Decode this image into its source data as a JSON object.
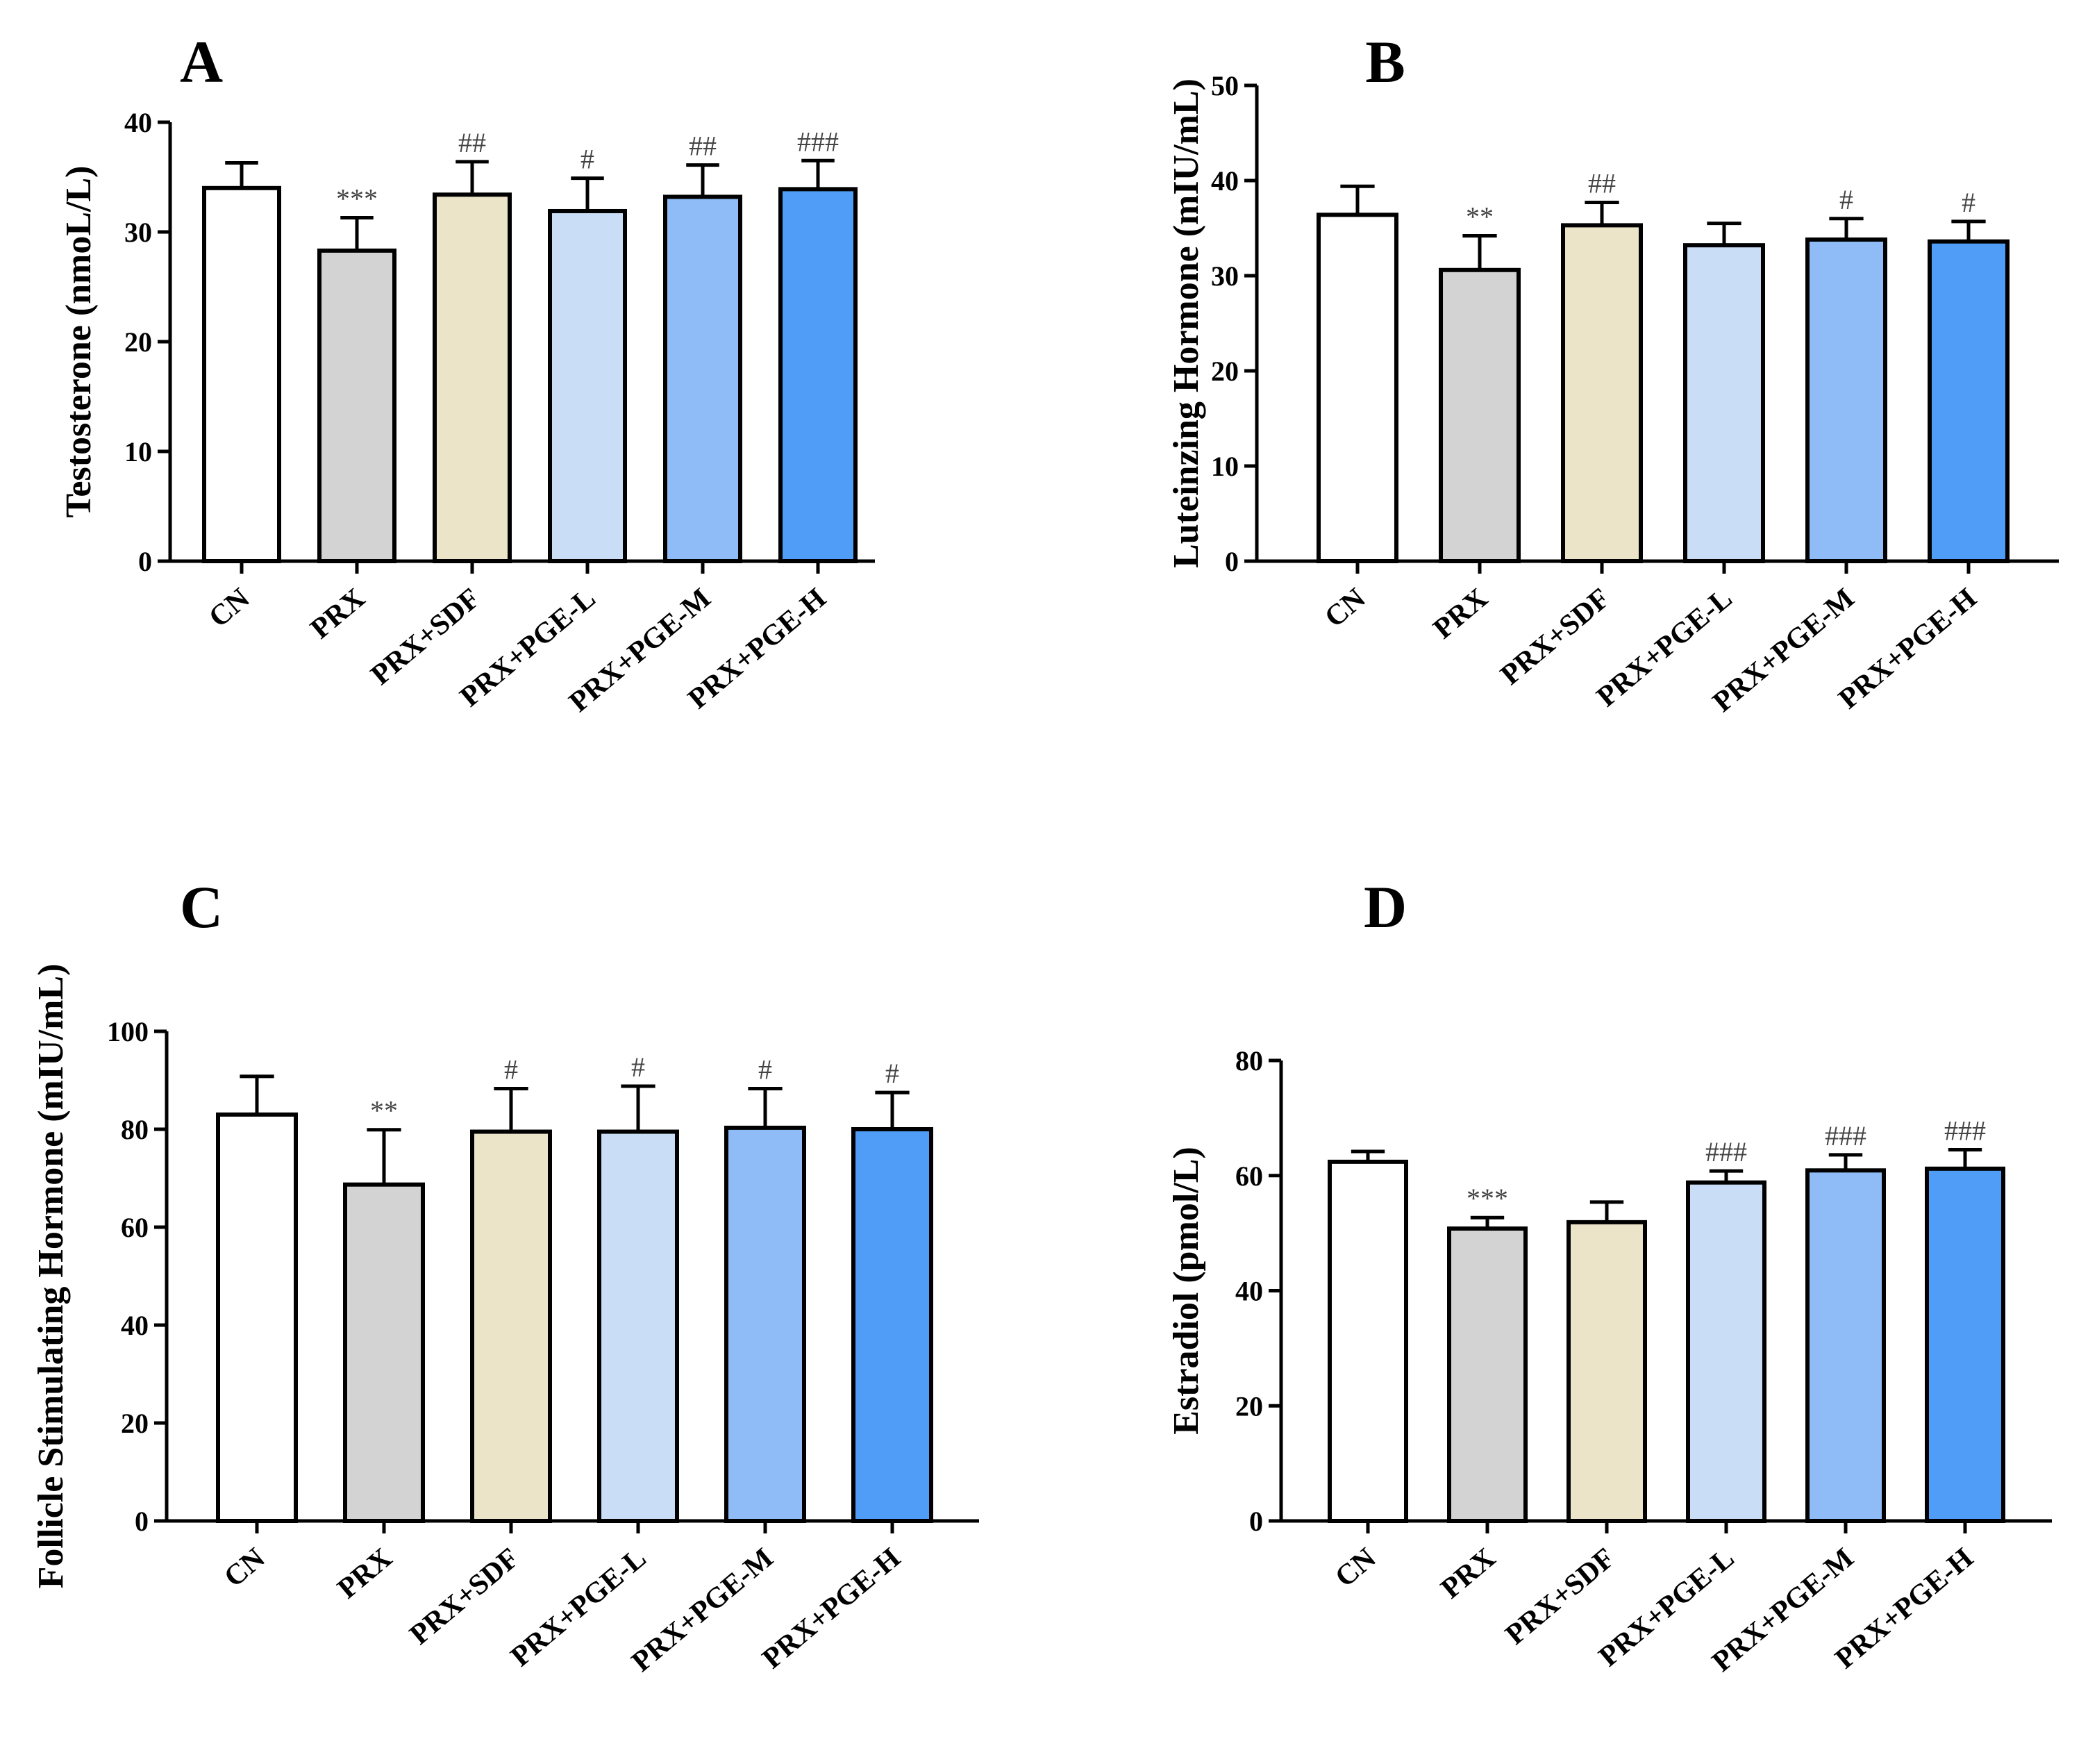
{
  "colors": {
    "CN": "#ffffff",
    "PRX": "#d3d3d3",
    "PRX+SDF": "#ebe4c8",
    "PRX+PGE-L": "#c9ddf7",
    "PRX+PGE-M": "#8fbcf7",
    "PRX+PGE-H": "#4f9df7"
  },
  "chart_data": [
    {
      "panel": "A",
      "type": "bar",
      "ylabel": "Testosterone (nmoL/L)",
      "categories": [
        "CN",
        "PRX",
        "PRX+SDF",
        "PRX+PGE-L",
        "PRX+PGE-M",
        "PRX+PGE-H"
      ],
      "values": [
        34.0,
        28.3,
        33.4,
        31.9,
        33.2,
        33.9
      ],
      "errors": [
        2.3,
        3.0,
        3.0,
        3.0,
        2.9,
        2.6
      ],
      "significance": [
        "",
        "***",
        "##",
        "#",
        "##",
        "###"
      ],
      "ylim": [
        0,
        40
      ],
      "yticks": [
        0,
        10,
        20,
        30,
        40
      ]
    },
    {
      "panel": "B",
      "type": "bar",
      "ylabel": "Luteinzing Hormone (mIU/mL)",
      "categories": [
        "CN",
        "PRX",
        "PRX+SDF",
        "PRX+PGE-L",
        "PRX+PGE-M",
        "PRX+PGE-H"
      ],
      "values": [
        36.4,
        30.6,
        35.3,
        33.2,
        33.8,
        33.6
      ],
      "errors": [
        3.0,
        3.6,
        2.4,
        2.3,
        2.2,
        2.1
      ],
      "significance": [
        "",
        "**",
        "##",
        "",
        "#",
        "#"
      ],
      "ylim": [
        0,
        50
      ],
      "yticks": [
        0,
        10,
        20,
        30,
        40,
        50
      ]
    },
    {
      "panel": "C",
      "type": "bar",
      "ylabel": "Follicle Stimulating Hormone (mIU/mL)",
      "categories": [
        "CN",
        "PRX",
        "PRX+SDF",
        "PRX+PGE-L",
        "PRX+PGE-M",
        "PRX+PGE-H"
      ],
      "values": [
        83.0,
        68.7,
        79.5,
        79.5,
        80.3,
        80.0
      ],
      "errors": [
        7.8,
        11.2,
        8.8,
        9.3,
        8.0,
        7.5
      ],
      "significance": [
        "",
        "**",
        "#",
        "#",
        "#",
        "#"
      ],
      "ylim": [
        0,
        100
      ],
      "yticks": [
        0,
        20,
        40,
        60,
        80,
        100
      ]
    },
    {
      "panel": "D",
      "type": "bar",
      "ylabel": "Estradiol (pmol/L)",
      "categories": [
        "CN",
        "PRX",
        "PRX+SDF",
        "PRX+PGE-L",
        "PRX+PGE-M",
        "PRX+PGE-H"
      ],
      "values": [
        62.4,
        50.8,
        51.9,
        58.8,
        60.9,
        61.2
      ],
      "errors": [
        1.8,
        1.9,
        3.5,
        2.0,
        2.7,
        3.3
      ],
      "significance": [
        "",
        "***",
        "",
        "###",
        "###",
        "###"
      ],
      "ylim": [
        0,
        80
      ],
      "yticks": [
        0,
        20,
        40,
        60,
        80
      ]
    }
  ]
}
